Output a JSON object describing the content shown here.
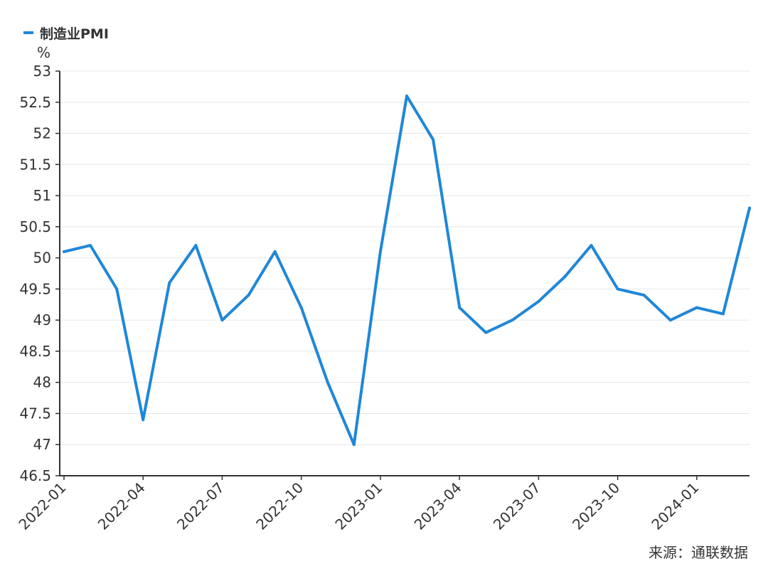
{
  "chart_data": {
    "type": "line",
    "unit": "%",
    "legend": "top-left",
    "grid": "horizontal",
    "series": [
      {
        "name": "制造业PMI",
        "color": "#1f87d8",
        "x": [
          "2022-01",
          "2022-02",
          "2022-03",
          "2022-04",
          "2022-05",
          "2022-06",
          "2022-07",
          "2022-08",
          "2022-09",
          "2022-10",
          "2022-11",
          "2022-12",
          "2023-01",
          "2023-02",
          "2023-03",
          "2023-04",
          "2023-05",
          "2023-06",
          "2023-07",
          "2023-08",
          "2023-09",
          "2023-10",
          "2023-11",
          "2023-12",
          "2024-01",
          "2024-02",
          "2024-03"
        ],
        "values": [
          50.1,
          50.2,
          49.5,
          47.4,
          49.6,
          50.2,
          49.0,
          49.4,
          50.1,
          49.2,
          48.0,
          47.0,
          50.1,
          52.6,
          51.9,
          49.2,
          48.8,
          49.0,
          49.3,
          49.7,
          50.2,
          49.5,
          49.4,
          49.0,
          49.2,
          49.1,
          50.8
        ]
      }
    ],
    "ylim": [
      46.5,
      53
    ],
    "y_ticks": [
      "46.5",
      "47",
      "47.5",
      "48",
      "48.5",
      "49",
      "49.5",
      "50",
      "50.5",
      "51",
      "51.5",
      "52",
      "52.5",
      "53"
    ],
    "x_tick_labels": [
      "2022-01",
      "2022-04",
      "2022-07",
      "2022-10",
      "2023-01",
      "2023-04",
      "2023-07",
      "2023-10",
      "2024-01"
    ],
    "source": "来源：通联数据"
  }
}
